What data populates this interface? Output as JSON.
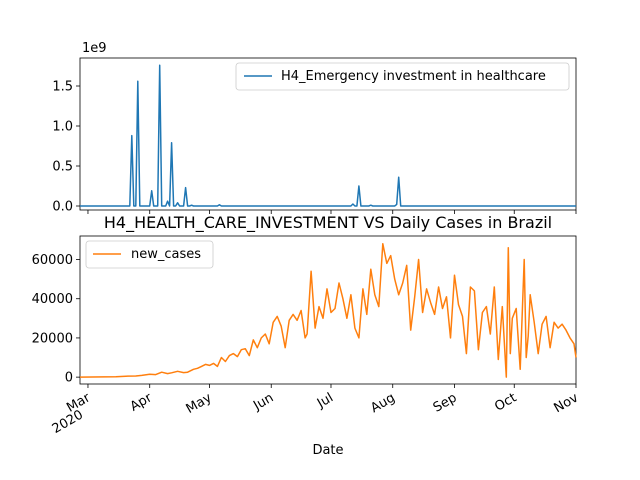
{
  "chart_data": [
    {
      "type": "line",
      "title": "",
      "offset_label": "1e9",
      "legend": {
        "placement": "top-right"
      },
      "series": [
        {
          "name": "H4_Emergency investment in healthcare",
          "color": "#1f77b4",
          "x": [
            "2020-02-26",
            "2020-03-22",
            "2020-03-23",
            "2020-03-24",
            "2020-03-25",
            "2020-03-26",
            "2020-03-27",
            "2020-03-28",
            "2020-03-29",
            "2020-04-01",
            "2020-04-02",
            "2020-04-03",
            "2020-04-04",
            "2020-04-05",
            "2020-04-06",
            "2020-04-07",
            "2020-04-08",
            "2020-04-09",
            "2020-04-10",
            "2020-04-11",
            "2020-04-12",
            "2020-04-13",
            "2020-04-14",
            "2020-04-15",
            "2020-04-16",
            "2020-04-17",
            "2020-04-18",
            "2020-04-19",
            "2020-04-20",
            "2020-04-21",
            "2020-04-22",
            "2020-04-23",
            "2020-05-05",
            "2020-05-06",
            "2020-05-07",
            "2020-07-11",
            "2020-07-12",
            "2020-07-13",
            "2020-07-14",
            "2020-07-15",
            "2020-07-16",
            "2020-07-17",
            "2020-07-20",
            "2020-07-21",
            "2020-07-22",
            "2020-08-02",
            "2020-08-03",
            "2020-08-04",
            "2020-08-05",
            "2020-08-06",
            "2020-11-01"
          ],
          "values": [
            0,
            0,
            880000000,
            0,
            0,
            1560000000,
            0,
            0,
            0,
            0,
            190000000,
            0,
            0,
            0,
            1760000000,
            0,
            0,
            0,
            60000000,
            0,
            790000000,
            0,
            0,
            40000000,
            0,
            0,
            0,
            230000000,
            0,
            0,
            10000000,
            0,
            0,
            15000000,
            0,
            0,
            25000000,
            0,
            0,
            250000000,
            0,
            0,
            0,
            10000000,
            0,
            0,
            20000000,
            360000000,
            0,
            0,
            0
          ]
        }
      ],
      "ylim": [
        -50000000,
        1850000000
      ],
      "ytick_labels": [
        "0.0",
        "0.5",
        "1.0",
        "1.5"
      ]
    },
    {
      "type": "line",
      "title": "H4_HEALTH_CARE_INVESTMENT VS Daily Cases in Brazil",
      "xlabel": "Date",
      "legend": {
        "placement": "top-left"
      },
      "series": [
        {
          "name": "new_cases",
          "color": "#ff7f0e",
          "x": [
            "2020-02-26",
            "2020-03-15",
            "2020-03-20",
            "2020-03-25",
            "2020-03-28",
            "2020-04-01",
            "2020-04-04",
            "2020-04-07",
            "2020-04-10",
            "2020-04-12",
            "2020-04-15",
            "2020-04-18",
            "2020-04-20",
            "2020-04-23",
            "2020-04-25",
            "2020-04-27",
            "2020-04-29",
            "2020-05-01",
            "2020-05-03",
            "2020-05-05",
            "2020-05-07",
            "2020-05-09",
            "2020-05-11",
            "2020-05-13",
            "2020-05-15",
            "2020-05-17",
            "2020-05-19",
            "2020-05-21",
            "2020-05-23",
            "2020-05-25",
            "2020-05-27",
            "2020-05-29",
            "2020-05-31",
            "2020-06-02",
            "2020-06-04",
            "2020-06-06",
            "2020-06-08",
            "2020-06-10",
            "2020-06-12",
            "2020-06-14",
            "2020-06-16",
            "2020-06-18",
            "2020-06-19",
            "2020-06-21",
            "2020-06-23",
            "2020-06-25",
            "2020-06-27",
            "2020-06-29",
            "2020-07-01",
            "2020-07-03",
            "2020-07-05",
            "2020-07-07",
            "2020-07-09",
            "2020-07-11",
            "2020-07-13",
            "2020-07-15",
            "2020-07-17",
            "2020-07-19",
            "2020-07-21",
            "2020-07-23",
            "2020-07-25",
            "2020-07-27",
            "2020-07-29",
            "2020-07-31",
            "2020-08-02",
            "2020-08-04",
            "2020-08-06",
            "2020-08-08",
            "2020-08-10",
            "2020-08-12",
            "2020-08-14",
            "2020-08-16",
            "2020-08-18",
            "2020-08-20",
            "2020-08-22",
            "2020-08-24",
            "2020-08-26",
            "2020-08-28",
            "2020-08-30",
            "2020-09-01",
            "2020-09-03",
            "2020-09-05",
            "2020-09-07",
            "2020-09-09",
            "2020-09-11",
            "2020-09-13",
            "2020-09-15",
            "2020-09-17",
            "2020-09-19",
            "2020-09-21",
            "2020-09-23",
            "2020-09-25",
            "2020-09-27",
            "2020-09-28",
            "2020-09-29",
            "2020-09-30",
            "2020-10-02",
            "2020-10-04",
            "2020-10-06",
            "2020-10-07",
            "2020-10-08",
            "2020-10-09",
            "2020-10-11",
            "2020-10-13",
            "2020-10-15",
            "2020-10-17",
            "2020-10-19",
            "2020-10-21",
            "2020-10-23",
            "2020-10-25",
            "2020-10-27",
            "2020-10-29",
            "2020-10-31",
            "2020-11-01"
          ],
          "values": [
            0,
            200,
            500,
            600,
            900,
            1500,
            1300,
            2500,
            1800,
            2200,
            3000,
            2300,
            2500,
            4000,
            4500,
            5500,
            6500,
            6000,
            7000,
            5500,
            10000,
            8000,
            11000,
            12000,
            10500,
            14000,
            14500,
            11000,
            19000,
            15000,
            20000,
            22000,
            17000,
            28000,
            31000,
            26000,
            15000,
            29000,
            32000,
            29000,
            34000,
            20000,
            22000,
            54000,
            25000,
            36000,
            30000,
            45000,
            33000,
            35000,
            48000,
            40000,
            30000,
            42000,
            25000,
            20000,
            45000,
            32000,
            55000,
            42000,
            36000,
            68000,
            58000,
            62000,
            50000,
            42000,
            48000,
            57000,
            24000,
            41000,
            60000,
            33000,
            45000,
            38000,
            32000,
            46000,
            35000,
            41000,
            20000,
            52000,
            37000,
            31000,
            12000,
            46000,
            44000,
            14000,
            33000,
            36000,
            22000,
            46000,
            9000,
            36000,
            0,
            66000,
            12000,
            30000,
            35000,
            4000,
            60000,
            10000,
            21000,
            42000,
            28000,
            12000,
            27000,
            31000,
            15000,
            28000,
            25000,
            27000,
            24000,
            20000,
            17000,
            10000
          ],
          "ylim": [
            -3500,
            72000
          ],
          "yticks": [
            0,
            20000,
            40000,
            60000
          ],
          "ytick_labels": [
            "0",
            "20000",
            "40000",
            "60000"
          ]
        }
      ]
    }
  ],
  "x_axis": {
    "ticks": [
      {
        "date": "2020-03-01",
        "label": "Mar",
        "sublabel": "2020"
      },
      {
        "date": "2020-04-01",
        "label": "Apr",
        "sublabel": ""
      },
      {
        "date": "2020-05-01",
        "label": "May",
        "sublabel": ""
      },
      {
        "date": "2020-06-01",
        "label": "Jun",
        "sublabel": ""
      },
      {
        "date": "2020-07-01",
        "label": "Jul",
        "sublabel": ""
      },
      {
        "date": "2020-08-01",
        "label": "Aug",
        "sublabel": ""
      },
      {
        "date": "2020-09-01",
        "label": "Sep",
        "sublabel": ""
      },
      {
        "date": "2020-10-01",
        "label": "Oct",
        "sublabel": ""
      },
      {
        "date": "2020-11-01",
        "label": "Nov",
        "sublabel": ""
      }
    ],
    "range": [
      "2020-02-26",
      "2020-11-01"
    ]
  }
}
